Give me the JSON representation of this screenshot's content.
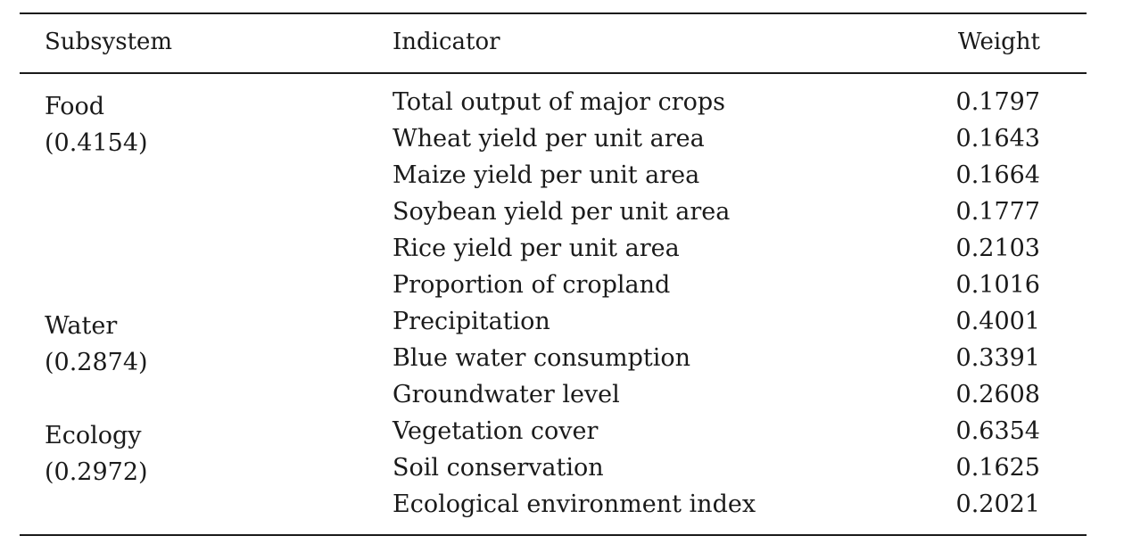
{
  "table": {
    "headers": {
      "subsystem": "Subsystem",
      "indicator": "Indicator",
      "weight": "Weight"
    },
    "groups": [
      {
        "name": "Food",
        "weight": "(0.4154)",
        "rows": [
          {
            "indicator": "Total output of major crops",
            "weight": "0.1797"
          },
          {
            "indicator": "Wheat yield per unit area",
            "weight": "0.1643"
          },
          {
            "indicator": "Maize yield per unit area",
            "weight": "0.1664"
          },
          {
            "indicator": "Soybean yield per unit area",
            "weight": "0.1777"
          },
          {
            "indicator": "Rice yield per unit area",
            "weight": "0.2103"
          },
          {
            "indicator": "Proportion of cropland",
            "weight": "0.1016"
          }
        ]
      },
      {
        "name": "Water",
        "weight": "(0.2874)",
        "rows": [
          {
            "indicator": "Precipitation",
            "weight": "0.4001"
          },
          {
            "indicator": "Blue water consumption",
            "weight": "0.3391"
          },
          {
            "indicator": "Groundwater level",
            "weight": "0.2608"
          }
        ]
      },
      {
        "name": "Ecology",
        "weight": "(0.2972)",
        "rows": [
          {
            "indicator": "Vegetation cover",
            "weight": "0.6354"
          },
          {
            "indicator": "Soil conservation",
            "weight": "0.1625"
          },
          {
            "indicator": "Ecological environment index",
            "weight": "0.2021"
          }
        ]
      }
    ]
  }
}
